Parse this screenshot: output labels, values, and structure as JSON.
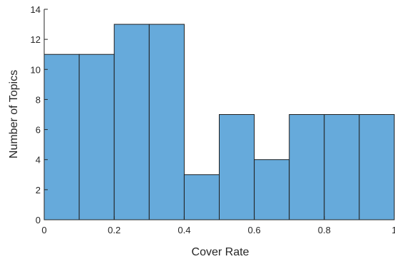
{
  "chart_data": {
    "type": "bar",
    "title": "",
    "xlabel": "Cover Rate",
    "ylabel": "Number of Topics",
    "bin_edges": [
      0,
      0.1,
      0.2,
      0.3,
      0.4,
      0.5,
      0.6,
      0.7,
      0.8,
      0.9,
      1.0
    ],
    "values": [
      11,
      11,
      13,
      13,
      3,
      7,
      4,
      7,
      7,
      7
    ],
    "xlim": [
      0,
      1
    ],
    "ylim": [
      0,
      14
    ],
    "xticks": [
      0,
      0.2,
      0.4,
      0.6,
      0.8,
      1
    ],
    "xtick_labels": [
      "0",
      "0.2",
      "0.4",
      "0.6",
      "0.8",
      "1"
    ],
    "yticks": [
      0,
      2,
      4,
      6,
      8,
      10,
      12,
      14
    ],
    "ytick_labels": [
      "0",
      "2",
      "4",
      "6",
      "8",
      "10",
      "12",
      "14"
    ],
    "bar_color": "#66aadb",
    "edge_color": "#1f1f1f",
    "grid": false,
    "legend": "none"
  }
}
